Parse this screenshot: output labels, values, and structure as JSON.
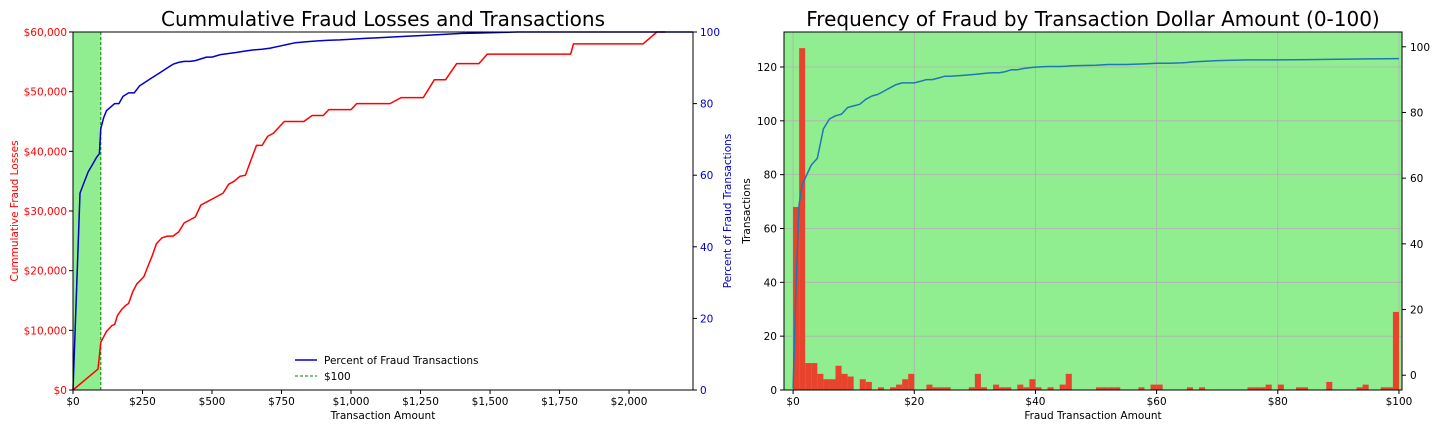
{
  "chart_data": [
    {
      "type": "line",
      "title": "Cummulative Fraud Losses and Transactions",
      "xlabel": "Transaction Amount",
      "ylabel": "Cummulative Fraud Losses",
      "ylabel_right": "Percent of Fraud Transactions",
      "xlim": [
        0,
        2230
      ],
      "ylim": [
        0,
        60000
      ],
      "ylim_right": [
        0,
        100
      ],
      "x_ticks": [
        0,
        250,
        500,
        750,
        1000,
        1250,
        1500,
        1750,
        2000
      ],
      "x_tick_labels": [
        "$0",
        "$250",
        "$500",
        "$750",
        "$1,000",
        "$1,250",
        "$1,500",
        "$1,750",
        "$2,000"
      ],
      "y_ticks": [
        0,
        10000,
        20000,
        30000,
        40000,
        50000,
        60000
      ],
      "y_tick_labels": [
        "$0",
        "$10,000",
        "$20,000",
        "$30,000",
        "$40,000",
        "$50,000",
        "$60,000"
      ],
      "y_ticks_right": [
        0,
        20,
        40,
        60,
        80,
        100
      ],
      "y_tick_labels_right": [
        "0",
        "20",
        "40",
        "60",
        "80",
        "100"
      ],
      "grid": false,
      "legend_position": "bottom-center",
      "colors": {
        "losses": "#ff0000",
        "percent": "#0000cc",
        "threshold": "#008000",
        "shade": "#90ee90"
      },
      "threshold": {
        "name": "$100",
        "x": 100
      },
      "shaded_region": [
        0,
        100
      ],
      "series": [
        {
          "name": "Cummulative Fraud Losses",
          "axis": "left",
          "x": [
            0,
            90,
            100,
            120,
            140,
            150,
            160,
            175,
            190,
            200,
            215,
            230,
            245,
            255,
            270,
            285,
            300,
            320,
            340,
            360,
            380,
            400,
            420,
            440,
            460,
            480,
            500,
            520,
            540,
            560,
            580,
            600,
            620,
            640,
            660,
            680,
            700,
            720,
            740,
            760,
            780,
            800,
            830,
            860,
            900,
            920,
            960,
            1000,
            1020,
            1060,
            1100,
            1140,
            1180,
            1220,
            1260,
            1300,
            1340,
            1380,
            1420,
            1460,
            1490,
            1520,
            1560,
            1600,
            1650,
            1700,
            1750,
            1790,
            1800,
            1850,
            1900,
            1950,
            2000,
            2050,
            2100,
            2130
          ],
          "values": [
            0,
            3500,
            8000,
            9800,
            10800,
            11000,
            12500,
            13500,
            14200,
            14500,
            16500,
            17800,
            18500,
            19000,
            20800,
            22500,
            24500,
            25500,
            25800,
            25800,
            26500,
            28000,
            28500,
            29000,
            31000,
            31500,
            32000,
            32500,
            33000,
            34500,
            35000,
            35800,
            36000,
            38500,
            41000,
            41000,
            42500,
            43000,
            44000,
            45000,
            45000,
            45000,
            45000,
            46000,
            46000,
            47000,
            47000,
            47000,
            48000,
            48000,
            48000,
            48000,
            49000,
            49000,
            49000,
            52000,
            52000,
            54700,
            54700,
            54700,
            56300,
            56300,
            56300,
            56300,
            56300,
            56300,
            56300,
            56300,
            58000,
            58000,
            58000,
            58000,
            58000,
            58000,
            60000,
            60000
          ]
        },
        {
          "name": "Percent of Fraud Transactions",
          "axis": "right",
          "x": [
            0,
            25,
            40,
            55,
            70,
            85,
            95,
            100,
            110,
            120,
            135,
            150,
            165,
            180,
            200,
            220,
            240,
            260,
            280,
            300,
            320,
            340,
            360,
            380,
            400,
            420,
            440,
            460,
            480,
            500,
            530,
            560,
            590,
            620,
            650,
            680,
            710,
            740,
            770,
            800,
            840,
            880,
            920,
            960,
            1000,
            1050,
            1100,
            1150,
            1200,
            1250,
            1300,
            1350,
            1400,
            1450,
            1500,
            1550,
            1600,
            1650,
            1700,
            1800,
            1900,
            2000,
            2100,
            2230
          ],
          "values": [
            0,
            55,
            58,
            61,
            63,
            65,
            66,
            73,
            76,
            78,
            79,
            80,
            80,
            82,
            83,
            83,
            85,
            86,
            87,
            88,
            89,
            90,
            91,
            91.5,
            91.8,
            91.8,
            92,
            92.5,
            93,
            93,
            93.7,
            94,
            94.3,
            94.7,
            95,
            95.2,
            95.5,
            96,
            96.5,
            97,
            97.3,
            97.5,
            97.7,
            97.8,
            98,
            98.2,
            98.4,
            98.6,
            98.8,
            99,
            99.2,
            99.4,
            99.6,
            99.7,
            99.8,
            99.9,
            100,
            100,
            100,
            100,
            100,
            100,
            100,
            100
          ]
        }
      ],
      "legend": [
        {
          "name": "Percent of Fraud Transactions",
          "style": "solid",
          "color": "#0000cc"
        },
        {
          "name": "$100",
          "style": "dashed",
          "color": "#008000"
        }
      ]
    },
    {
      "type": "bar",
      "title": "Frequency of Fraud by Transaction Dollar Amount (0-100)",
      "xlabel": "Fraud Transaction Amount",
      "ylabel": "Transactions",
      "xlim": [
        -1.5,
        100.5
      ],
      "ylim": [
        0,
        133
      ],
      "ylim_right": [
        -4.5,
        104.5
      ],
      "x_ticks": [
        0,
        20,
        40,
        60,
        80,
        100
      ],
      "x_tick_labels": [
        "$0",
        "$20",
        "$40",
        "$60",
        "$80",
        "$100"
      ],
      "y_ticks": [
        0,
        20,
        40,
        60,
        80,
        100,
        120
      ],
      "y_tick_labels": [
        "0",
        "20",
        "40",
        "60",
        "80",
        "100",
        "120"
      ],
      "y_ticks_right": [
        0,
        20,
        40,
        60,
        80,
        100
      ],
      "y_tick_labels_right": [
        "0",
        "20",
        "40",
        "60",
        "80",
        "100"
      ],
      "grid": true,
      "colors": {
        "bars": "#e8432d",
        "cumulative": "#1f77b4",
        "background": "#90ee90",
        "grid": "#b0b0b0"
      },
      "bin_width": 1,
      "bins": [
        {
          "x": 0,
          "value": 68
        },
        {
          "x": 1,
          "value": 127
        },
        {
          "x": 2,
          "value": 10
        },
        {
          "x": 3,
          "value": 10
        },
        {
          "x": 4,
          "value": 6
        },
        {
          "x": 5,
          "value": 4
        },
        {
          "x": 6,
          "value": 4
        },
        {
          "x": 7,
          "value": 9
        },
        {
          "x": 8,
          "value": 6
        },
        {
          "x": 9,
          "value": 5
        },
        {
          "x": 11,
          "value": 4
        },
        {
          "x": 12,
          "value": 3
        },
        {
          "x": 14,
          "value": 1
        },
        {
          "x": 16,
          "value": 1
        },
        {
          "x": 17,
          "value": 2
        },
        {
          "x": 18,
          "value": 4
        },
        {
          "x": 19,
          "value": 6
        },
        {
          "x": 22,
          "value": 2
        },
        {
          "x": 23,
          "value": 1
        },
        {
          "x": 24,
          "value": 1
        },
        {
          "x": 25,
          "value": 1
        },
        {
          "x": 29,
          "value": 1
        },
        {
          "x": 30,
          "value": 6
        },
        {
          "x": 31,
          "value": 1
        },
        {
          "x": 33,
          "value": 2
        },
        {
          "x": 34,
          "value": 1
        },
        {
          "x": 35,
          "value": 1
        },
        {
          "x": 37,
          "value": 2
        },
        {
          "x": 38,
          "value": 1
        },
        {
          "x": 39,
          "value": 4
        },
        {
          "x": 40,
          "value": 1
        },
        {
          "x": 42,
          "value": 1
        },
        {
          "x": 44,
          "value": 2
        },
        {
          "x": 45,
          "value": 6
        },
        {
          "x": 50,
          "value": 1
        },
        {
          "x": 51,
          "value": 1
        },
        {
          "x": 52,
          "value": 1
        },
        {
          "x": 53,
          "value": 1
        },
        {
          "x": 57,
          "value": 1
        },
        {
          "x": 59,
          "value": 2
        },
        {
          "x": 60,
          "value": 2
        },
        {
          "x": 65,
          "value": 1
        },
        {
          "x": 67,
          "value": 1
        },
        {
          "x": 75,
          "value": 1
        },
        {
          "x": 76,
          "value": 1
        },
        {
          "x": 77,
          "value": 1
        },
        {
          "x": 78,
          "value": 2
        },
        {
          "x": 80,
          "value": 2
        },
        {
          "x": 83,
          "value": 1
        },
        {
          "x": 84,
          "value": 1
        },
        {
          "x": 88,
          "value": 3
        },
        {
          "x": 93,
          "value": 1
        },
        {
          "x": 94,
          "value": 2
        },
        {
          "x": 97,
          "value": 1
        },
        {
          "x": 98,
          "value": 1
        },
        {
          "x": 99,
          "value": 29
        }
      ],
      "cumulative_series": {
        "axis": "right",
        "x": [
          0,
          0.5,
          1,
          1.5,
          2,
          3,
          4,
          5,
          6,
          7,
          8,
          9,
          10,
          11,
          12,
          13,
          14,
          15,
          16,
          17,
          18,
          19,
          20,
          21,
          22,
          23,
          24,
          25,
          26,
          28,
          30,
          32,
          33,
          34,
          35,
          36,
          37,
          38,
          39,
          40,
          42,
          44,
          45,
          46,
          48,
          50,
          52,
          55,
          58,
          60,
          62,
          64,
          65,
          66,
          68,
          70,
          75,
          80,
          85,
          90,
          95,
          100
        ],
        "values": [
          -4,
          28,
          52,
          58,
          60,
          64,
          66,
          75,
          78,
          79,
          79.5,
          81.5,
          82,
          82.5,
          84,
          85,
          85.5,
          86.5,
          87.5,
          88.5,
          89,
          89,
          89,
          89.5,
          90,
          90,
          90.5,
          91,
          91,
          91.3,
          91.6,
          92,
          92.1,
          92.1,
          92.4,
          93,
          93,
          93.4,
          93.6,
          93.8,
          94,
          94,
          94.1,
          94.2,
          94.3,
          94.4,
          94.6,
          94.6,
          94.8,
          95,
          95,
          95.1,
          95.2,
          95.4,
          95.6,
          95.8,
          96,
          96,
          96.1,
          96.2,
          96.3,
          96.4
        ]
      }
    }
  ]
}
